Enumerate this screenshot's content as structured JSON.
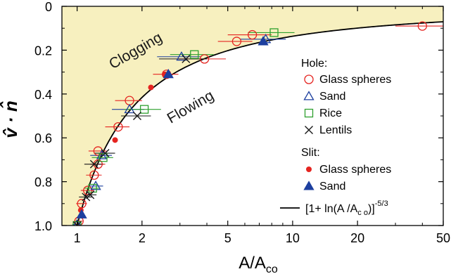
{
  "chart_data": {
    "type": "scatter",
    "xlabel": "A/A",
    "xlabel_sub": "co",
    "ylabel": "v̂ · n̂",
    "x_scale": "log",
    "xlim": [
      0.85,
      50
    ],
    "ylim": [
      0,
      1.0
    ],
    "y_inverted": true,
    "x_ticks": [
      1,
      2,
      5,
      10,
      20,
      50
    ],
    "y_ticks": [
      0,
      0.2,
      0.4,
      0.6,
      0.8,
      1.0
    ],
    "y_tick_labels": [
      "0",
      "0.2",
      "0.4",
      "0.6",
      "0.8",
      "1.0"
    ],
    "region_labels": {
      "upper": "Clogging",
      "lower": "Flowing"
    },
    "region_fill_color": "#f7f0bf",
    "curve": {
      "label_text": "[1+ ln(A /A",
      "label_sub": "c o",
      "label_tail": ")]",
      "label_exp": "-5/3",
      "formula": "[1 + ln(A/Aco)]^(-5/3)",
      "color": "#000000"
    },
    "legend": {
      "hole_header": "Hole:",
      "slit_header": "Slit:",
      "placement": "right"
    },
    "series": [
      {
        "name": "Glass spheres",
        "group": "Hole",
        "marker": "circle-open",
        "color": "#e52420",
        "points": [
          [
            1.02,
            0.98,
            0.04
          ],
          [
            1.05,
            0.9,
            0.06
          ],
          [
            1.12,
            0.84,
            0.08
          ],
          [
            1.2,
            0.77,
            0.1
          ],
          [
            1.25,
            0.72,
            0.1
          ],
          [
            1.25,
            0.66,
            0.12
          ],
          [
            1.55,
            0.55,
            0.2
          ],
          [
            1.75,
            0.43,
            0.25
          ],
          [
            2.6,
            0.31,
            0.35
          ],
          [
            3.9,
            0.24,
            1.0
          ],
          [
            5.5,
            0.16,
            1.0
          ],
          [
            6.5,
            0.13,
            1.5
          ],
          [
            40,
            0.09,
            10
          ]
        ]
      },
      {
        "name": "Sand",
        "group": "Hole",
        "marker": "triangle-open",
        "color": "#1d3f9f",
        "points": [
          [
            1.0,
            0.995,
            0.05
          ],
          [
            1.22,
            0.82,
            0.1
          ],
          [
            1.3,
            0.68,
            0.15
          ],
          [
            1.75,
            0.47,
            0.3
          ],
          [
            3.05,
            0.23,
            0.7
          ],
          [
            7.5,
            0.15,
            1.8
          ]
        ]
      },
      {
        "name": "Rice",
        "group": "Hole",
        "marker": "square-open",
        "color": "#2ea02e",
        "points": [
          [
            1.0,
            1.0,
            0.05
          ],
          [
            1.18,
            0.83,
            0.1
          ],
          [
            1.32,
            0.69,
            0.15
          ],
          [
            2.05,
            0.47,
            0.4
          ],
          [
            3.5,
            0.22,
            0.8
          ],
          [
            8.2,
            0.12,
            2.0
          ]
        ]
      },
      {
        "name": "Lentils",
        "group": "Hole",
        "marker": "x",
        "color": "#1a1a1a",
        "points": [
          [
            1.0,
            1.0,
            0.04
          ],
          [
            1.1,
            0.87,
            0.08
          ],
          [
            1.15,
            0.86,
            0.08
          ],
          [
            1.2,
            0.72,
            0.12
          ],
          [
            1.35,
            0.67,
            0.15
          ],
          [
            1.9,
            0.5,
            0.3
          ],
          [
            3.2,
            0.24,
            0.8
          ]
        ]
      },
      {
        "name": "Glass spheres",
        "group": "Slit",
        "marker": "circle-filled",
        "color": "#e52420",
        "points": [
          [
            1.04,
            0.93,
            0
          ],
          [
            1.5,
            0.61,
            0
          ],
          [
            2.2,
            0.37,
            0
          ],
          [
            2.55,
            0.31,
            0
          ]
        ]
      },
      {
        "name": "Sand",
        "group": "Slit",
        "marker": "triangle-filled",
        "color": "#1d3f9f",
        "points": [
          [
            1.05,
            0.95,
            0
          ],
          [
            2.65,
            0.31,
            0
          ],
          [
            7.3,
            0.16,
            0
          ]
        ]
      }
    ]
  }
}
